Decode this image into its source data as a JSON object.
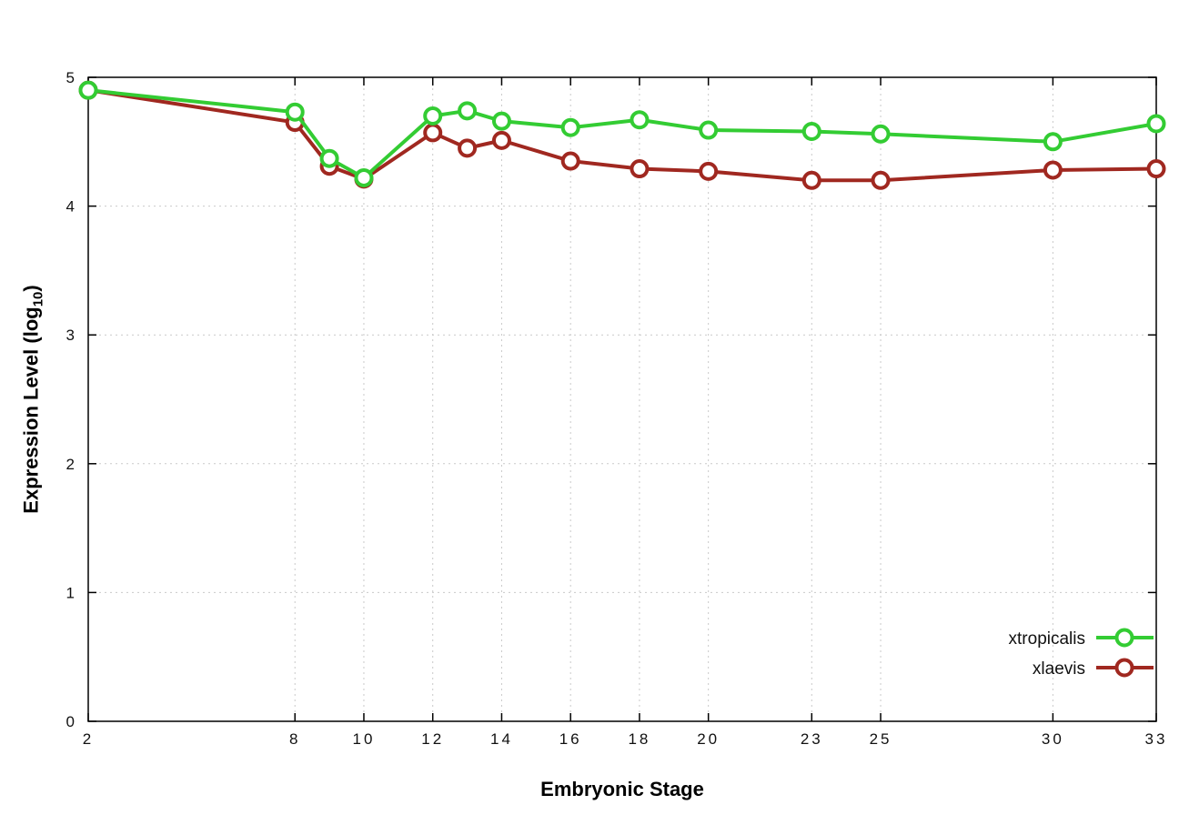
{
  "chart_data": {
    "type": "line",
    "title": "",
    "xlabel": "Embryonic Stage",
    "ylabel": "Expression Level (log10)",
    "ylabel_parts": {
      "main": "Expression Level (log",
      "sub": "10",
      "close": ")"
    },
    "xlim": [
      2,
      33
    ],
    "ylim": [
      0,
      5
    ],
    "x_ticks": [
      2,
      8,
      10,
      12,
      14,
      16,
      18,
      20,
      23,
      25,
      30,
      33
    ],
    "y_ticks": [
      0,
      1,
      2,
      3,
      4,
      5
    ],
    "grid": true,
    "legend_position": "inside-right-lower",
    "x": [
      2,
      8,
      9,
      10,
      12,
      13,
      14,
      16,
      18,
      20,
      23,
      25,
      30,
      33
    ],
    "series": [
      {
        "name": "xtropicalis",
        "color": "#33cc33",
        "values": [
          4.9,
          4.73,
          4.37,
          4.22,
          4.7,
          4.74,
          4.66,
          4.61,
          4.67,
          4.59,
          4.58,
          4.56,
          4.5,
          4.64
        ]
      },
      {
        "name": "xlaevis",
        "color": "#a02820",
        "values": [
          4.9,
          4.65,
          4.31,
          4.21,
          4.57,
          4.45,
          4.51,
          4.35,
          4.29,
          4.27,
          4.2,
          4.2,
          4.28,
          4.29
        ]
      }
    ]
  },
  "colors": {
    "background": "#ffffff",
    "grid": "#c9c9c9",
    "axis": "#000000"
  }
}
